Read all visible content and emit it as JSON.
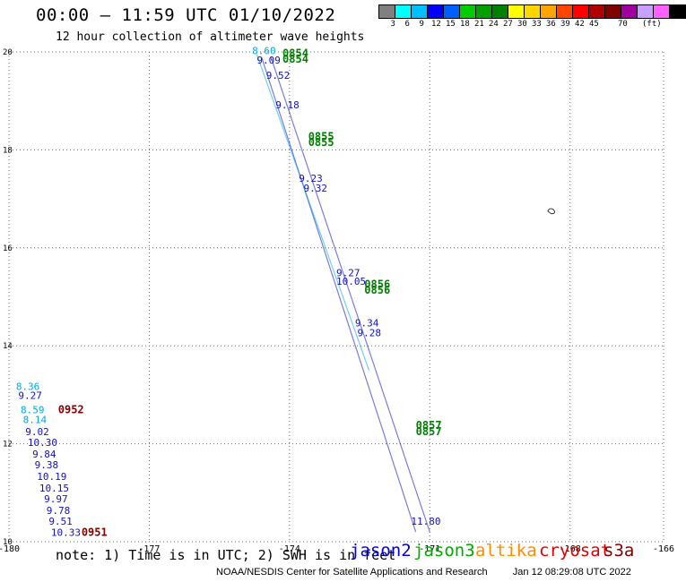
{
  "header": {
    "title": "00:00 – 11:59 UTC 01/10/2022",
    "subtitle": "12 hour collection of altimeter wave heights"
  },
  "legend": {
    "colors": [
      "#808080",
      "#00ffff",
      "#00bfff",
      "#0000ff",
      "#0060ff",
      "#00cc00",
      "#00a000",
      "#008000",
      "#ffff00",
      "#ffd700",
      "#ffa500",
      "#ff4500",
      "#ff0000",
      "#b00000",
      "#800000",
      "#a000a0",
      "#c8a0ff",
      "#ff60ff",
      "#000000"
    ],
    "labels": [
      "3",
      "6",
      "9",
      "12",
      "15",
      "18",
      "21",
      "24",
      "27",
      "30",
      "33",
      "36",
      "39",
      "42",
      "45",
      "70",
      "(ft)"
    ],
    "label_slots": [
      0,
      1,
      2,
      3,
      4,
      5,
      6,
      7,
      8,
      9,
      10,
      11,
      12,
      13,
      14,
      16,
      18
    ]
  },
  "chart_data": {
    "type": "scatter",
    "xlim": [
      -180,
      -166
    ],
    "ylim": [
      10,
      20
    ],
    "xticks": [
      -180,
      -177,
      -174,
      -171,
      -168,
      -166
    ],
    "xtick_labels": [
      "-180",
      "-177",
      "-174",
      "-171",
      "-168",
      "-166"
    ],
    "yticks": [
      10,
      12,
      14,
      16,
      18,
      20
    ],
    "ytick_labels": [
      "10",
      "12",
      "14",
      "16",
      "18",
      "20"
    ],
    "grid": true,
    "grid_style": "dotted",
    "colors": {
      "jason2": "#1010c0",
      "jason3": "#008000",
      "altika": "#ff8c00",
      "cryosat": "#c00000",
      "s3a": "#800000",
      "cyan": "#00a8e0"
    },
    "tracks": [
      {
        "name": "jason2-track-a",
        "color": "#1010c0",
        "from": [
          -174.6,
          19.9
        ],
        "to": [
          -171.3,
          10.2
        ]
      },
      {
        "name": "jason2-track-b",
        "color": "#1010c0",
        "from": [
          -174.4,
          19.9
        ],
        "to": [
          -171.0,
          10.2
        ]
      },
      {
        "name": "cyan-track",
        "color": "#00a8e0",
        "from": [
          -174.7,
          19.95
        ],
        "to": [
          -172.3,
          13.5
        ]
      }
    ],
    "labels": [
      {
        "text": "8.60",
        "x": -174.8,
        "y": 19.95,
        "color": "#00a8e0"
      },
      {
        "text": "9.09",
        "x": -174.7,
        "y": 19.76,
        "color": "#1010c0"
      },
      {
        "text": "9.52",
        "x": -174.5,
        "y": 19.45,
        "color": "#1010c0"
      },
      {
        "text": "9.18",
        "x": -174.3,
        "y": 18.85,
        "color": "#1010c0"
      },
      {
        "text": "9.23",
        "x": -173.8,
        "y": 17.35,
        "color": "#1010c0"
      },
      {
        "text": "9.32",
        "x": -173.7,
        "y": 17.15,
        "color": "#1010c0"
      },
      {
        "text": "9.27",
        "x": -173.0,
        "y": 15.42,
        "color": "#1010c0"
      },
      {
        "text": "10.05",
        "x": -173.0,
        "y": 15.25,
        "color": "#1010c0"
      },
      {
        "text": "9.34",
        "x": -172.6,
        "y": 14.4,
        "color": "#1010c0"
      },
      {
        "text": "9.28",
        "x": -172.55,
        "y": 14.2,
        "color": "#1010c0"
      },
      {
        "text": "11.80",
        "x": -171.4,
        "y": 10.35,
        "color": "#1010c0"
      },
      {
        "text": "8.36",
        "x": -179.85,
        "y": 13.1,
        "color": "#00a8e0"
      },
      {
        "text": "9.27",
        "x": -179.8,
        "y": 12.92,
        "color": "#1010c0"
      },
      {
        "text": "8.59",
        "x": -179.75,
        "y": 12.62,
        "color": "#00a8e0"
      },
      {
        "text": "8.14",
        "x": -179.7,
        "y": 12.42,
        "color": "#00a8e0"
      },
      {
        "text": "9.02",
        "x": -179.65,
        "y": 12.18,
        "color": "#1010c0"
      },
      {
        "text": "10.30",
        "x": -179.6,
        "y": 11.96,
        "color": "#1010c0"
      },
      {
        "text": "9.84",
        "x": -179.5,
        "y": 11.72,
        "color": "#1010c0"
      },
      {
        "text": "9.38",
        "x": -179.45,
        "y": 11.5,
        "color": "#1010c0"
      },
      {
        "text": "10.19",
        "x": -179.4,
        "y": 11.26,
        "color": "#1010c0"
      },
      {
        "text": "10.15",
        "x": -179.35,
        "y": 11.02,
        "color": "#1010c0"
      },
      {
        "text": "9.97",
        "x": -179.25,
        "y": 10.8,
        "color": "#1010c0"
      },
      {
        "text": "9.78",
        "x": -179.2,
        "y": 10.57,
        "color": "#1010c0"
      },
      {
        "text": "9.51",
        "x": -179.15,
        "y": 10.35,
        "color": "#1010c0"
      },
      {
        "text": "10.33",
        "x": -179.1,
        "y": 10.12,
        "color": "#1010c0"
      }
    ],
    "time_labels": [
      {
        "text": "0854",
        "x": -174.15,
        "y": 19.9,
        "color": "#008000"
      },
      {
        "text": "0854",
        "x": -174.15,
        "y": 19.78,
        "color": "#008000"
      },
      {
        "text": "0855",
        "x": -173.6,
        "y": 18.2,
        "color": "#008000"
      },
      {
        "text": "0855",
        "x": -173.6,
        "y": 18.08,
        "color": "#008000"
      },
      {
        "text": "0856",
        "x": -172.4,
        "y": 15.18,
        "color": "#008000"
      },
      {
        "text": "0856",
        "x": -172.4,
        "y": 15.06,
        "color": "#008000"
      },
      {
        "text": "0857",
        "x": -171.3,
        "y": 12.3,
        "color": "#008000"
      },
      {
        "text": "0857",
        "x": -171.3,
        "y": 12.18,
        "color": "#008000"
      },
      {
        "text": "0952",
        "x": -178.95,
        "y": 12.62,
        "color": "#800000"
      },
      {
        "text": "0951",
        "x": -178.45,
        "y": 10.12,
        "color": "#800000"
      }
    ],
    "markers": [
      {
        "name": "island-marker",
        "x": -168.4,
        "y": 16.75
      }
    ]
  },
  "footer": {
    "note": "note: 1) Time is in UTC; 2) SWH is in feet",
    "satellites": [
      {
        "label": "jason2",
        "color": "#0000dd"
      },
      {
        "label": "jason3",
        "color": "#00aa00"
      },
      {
        "label": "altika",
        "color": "#ff8c00"
      },
      {
        "label": "cryosat",
        "color": "#dd0000"
      },
      {
        "label": "s3a",
        "color": "#800000"
      }
    ],
    "credit": "NOAA/NESDIS Center for Satellite Applications and Research",
    "timestamp": "Jan 12 08:29:08 UTC 2022"
  }
}
